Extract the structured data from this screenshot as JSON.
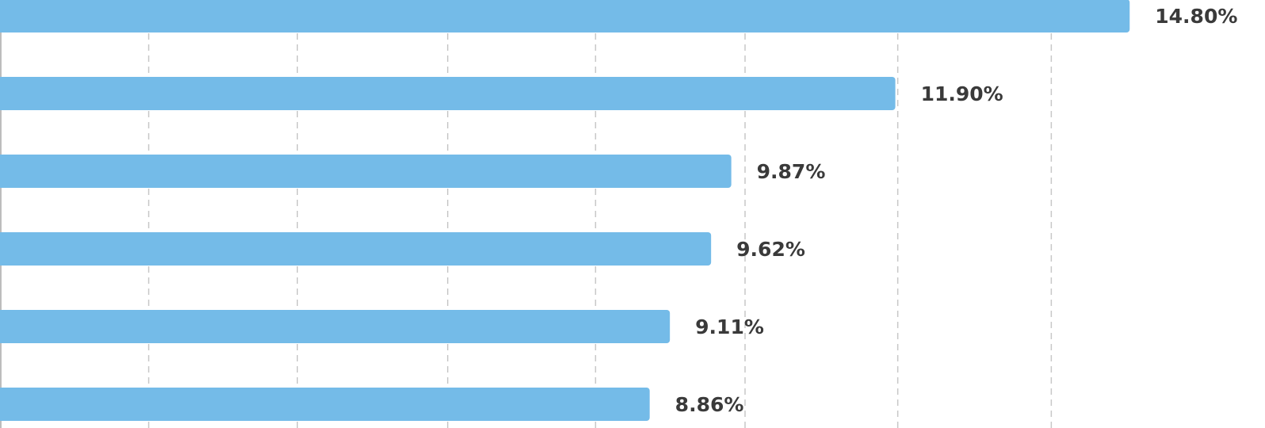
{
  "chart_data": {
    "type": "hbar",
    "values": [
      14.8,
      11.9,
      9.87,
      9.62,
      9.11,
      8.86
    ],
    "value_labels": [
      "14.80%",
      "11.90%",
      "9.87%",
      "9.62%",
      "9.11%",
      "8.86%"
    ],
    "color": "#74bbe8",
    "xlim": [
      0.82,
      16.2
    ],
    "xticks": [
      2.66,
      4.5,
      6.36,
      8.19,
      10.04,
      11.93,
      13.83
    ],
    "grid": true
  }
}
